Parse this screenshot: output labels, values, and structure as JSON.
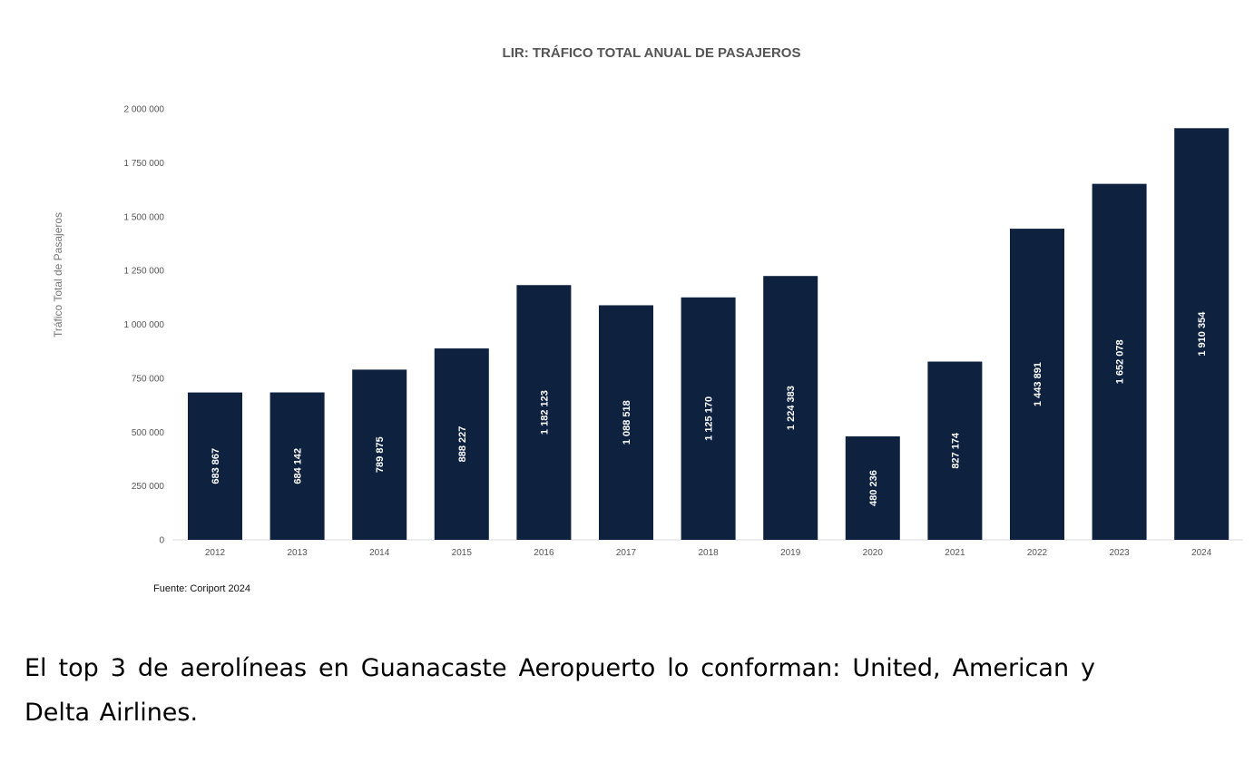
{
  "chart_data": {
    "type": "bar",
    "title": "LIR: TRÁFICO TOTAL ANUAL DE PASAJEROS",
    "xlabel": "",
    "ylabel": "Tráfico Total de Pasajeros",
    "categories": [
      "2012",
      "2013",
      "2014",
      "2015",
      "2016",
      "2017",
      "2018",
      "2019",
      "2020",
      "2021",
      "2022",
      "2023",
      "2024"
    ],
    "values": [
      683867,
      684142,
      789875,
      888227,
      1182123,
      1088518,
      1125170,
      1224383,
      480236,
      827174,
      1443891,
      1652078,
      1910354
    ],
    "value_labels": [
      "683 867",
      "684 142",
      "789 875",
      "888 227",
      "1 182 123",
      "1 088 518",
      "1 125 170",
      "1 224 383",
      "480 236",
      "827 174",
      "1 443 891",
      "1 652 078",
      "1 910 354"
    ],
    "ylim": [
      0,
      2000000
    ],
    "yticks": [
      0,
      250000,
      500000,
      750000,
      1000000,
      1250000,
      1500000,
      1750000,
      2000000
    ],
    "ytick_labels": [
      "0",
      "250 000",
      "500 000",
      "750 000",
      "1 000 000",
      "1 250 000",
      "1 500 000",
      "1 750 000",
      "2 000 000"
    ],
    "grid": false,
    "bar_color": "#0e2240",
    "source": "Fuente: Coriport 2024"
  },
  "caption": "El top 3 de aerolíneas en Guanacaste Aeropuerto lo conforman: United, American y Delta Airlines."
}
